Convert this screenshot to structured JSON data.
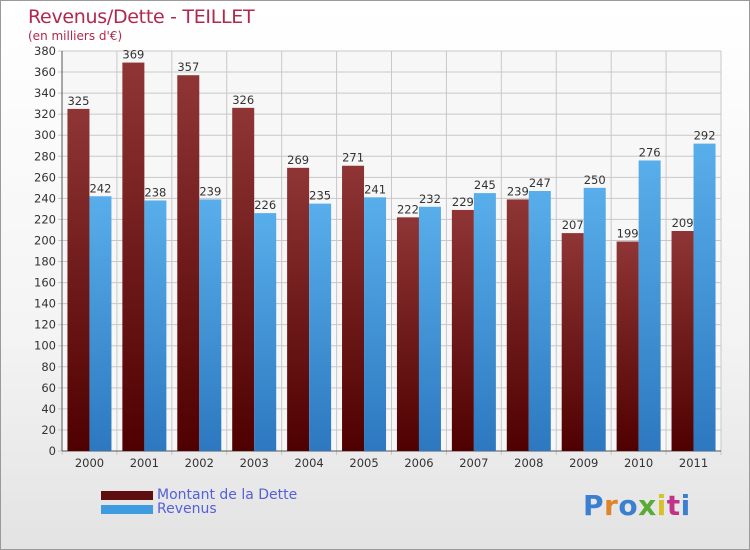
{
  "header": {
    "title": "Revenus/Dette - TEILLET",
    "subtitle": "(en milliers d'€)"
  },
  "logo": {
    "text": "Proxiti",
    "colors": [
      "#3a7fd0",
      "#e0842a",
      "#3a7fd0",
      "#5aaa35",
      "#d6c12a",
      "#c3328a",
      "#3a7fd0"
    ]
  },
  "chart_data": {
    "type": "bar",
    "title": "Revenus/Dette - TEILLET",
    "subtitle": "(en milliers d'€)",
    "xlabel": "",
    "ylabel": "",
    "categories": [
      "2000",
      "2001",
      "2002",
      "2003",
      "2004",
      "2005",
      "2006",
      "2007",
      "2008",
      "2009",
      "2010",
      "2011"
    ],
    "series": [
      {
        "name": "Montant de la Dette",
        "color": "#7d1c1c",
        "values": [
          325,
          369,
          357,
          326,
          269,
          271,
          222,
          229,
          239,
          207,
          199,
          209
        ]
      },
      {
        "name": "Revenus",
        "color": "#3f9ce0",
        "values": [
          242,
          238,
          239,
          226,
          235,
          241,
          232,
          245,
          247,
          250,
          276,
          292
        ]
      }
    ],
    "ylim": [
      0,
      380
    ],
    "ytick_step": 20,
    "grid": true,
    "legend": "bottom-left"
  }
}
